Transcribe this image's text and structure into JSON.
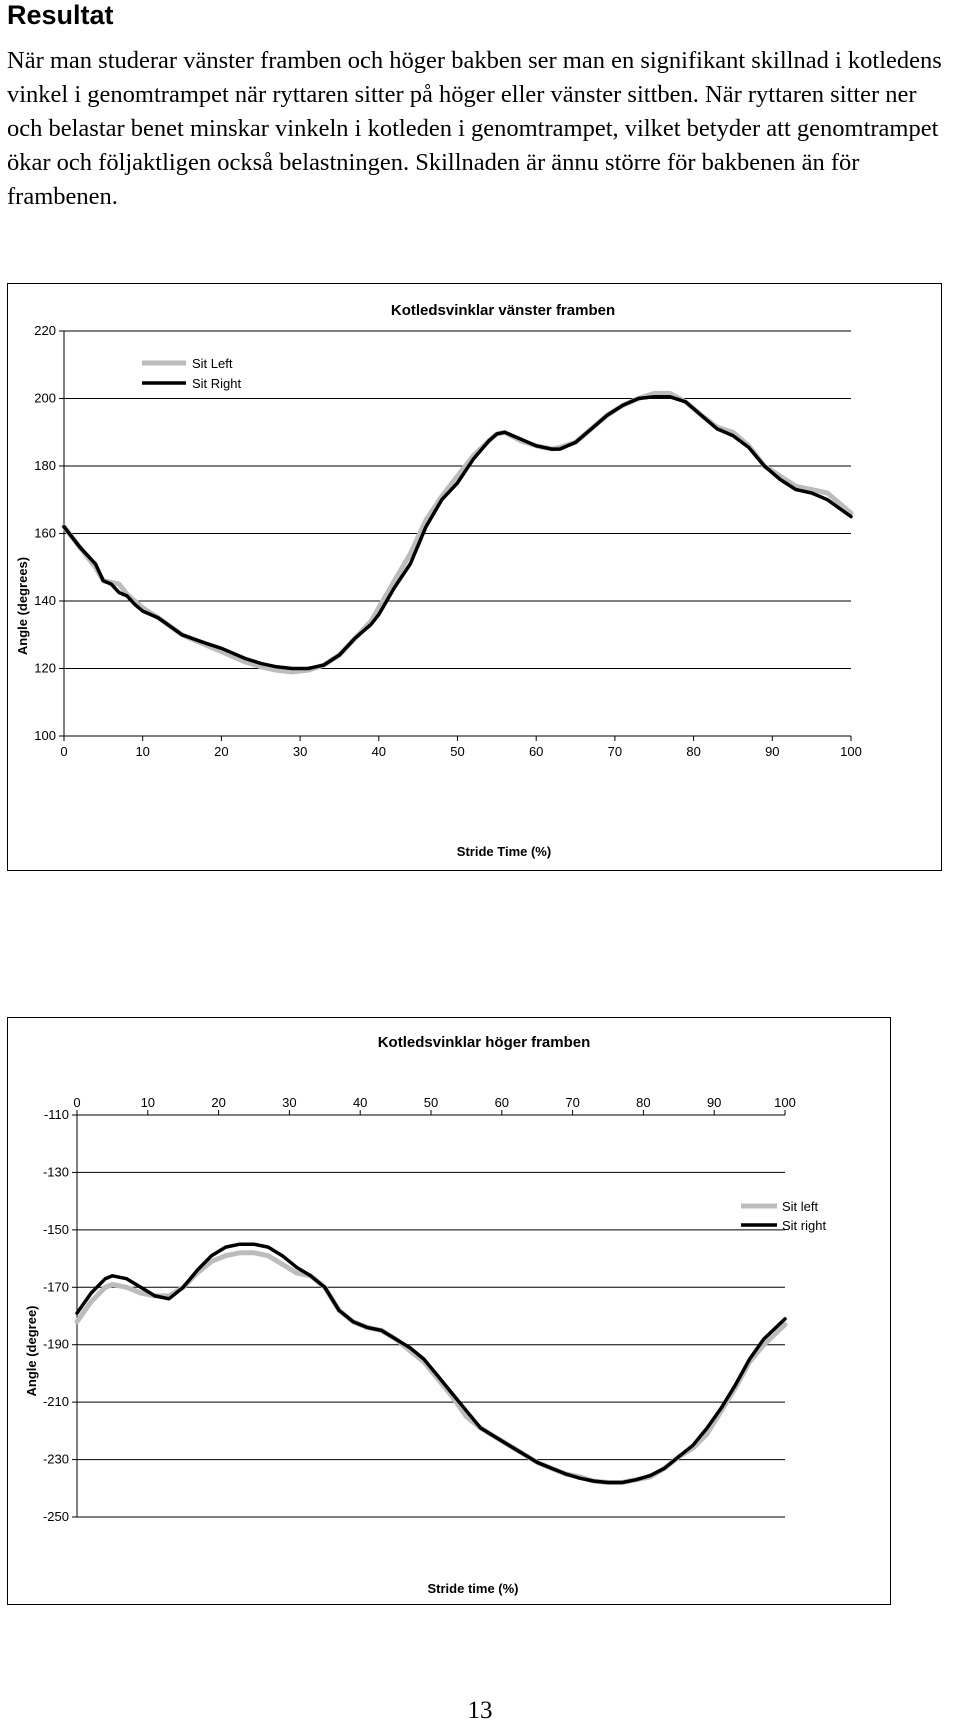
{
  "heading": "Resultat",
  "paragraph": "När man studerar vänster framben och höger bakben ser man en signifikant skillnad i kotledens vinkel i genomtrampet när ryttaren sitter på höger eller vänster sittben. När ryttaren sitter ner och belastar benet minskar vinkeln i kotleden i genomtrampet, vilket betyder att genomtrampet ökar och följaktligen också belastningen. Skillnaden är ännu större för bakbenen än för frambenen.",
  "page_number": "13",
  "colors": {
    "sit_left": "#bcbcbc",
    "sit_right": "#000000"
  },
  "chart_data": [
    {
      "type": "line",
      "title": "Kotledsvinklar vänster framben",
      "xlabel": "Stride Time (%)",
      "ylabel": "Angle (degrees)",
      "xlim": [
        0,
        100
      ],
      "ylim": [
        100,
        220
      ],
      "x_ticks": [
        "0",
        "10",
        "20",
        "30",
        "40",
        "50",
        "60",
        "70",
        "80",
        "90",
        "100"
      ],
      "y_ticks": [
        "220",
        "200",
        "180",
        "160",
        "140",
        "120",
        "100"
      ],
      "grid": "horizontal",
      "legend": "top-left",
      "x": [
        0,
        2,
        4,
        5,
        6,
        7,
        8,
        9,
        10,
        12,
        15,
        18,
        20,
        23,
        25,
        27,
        29,
        31,
        33,
        35,
        37,
        39,
        40,
        42,
        44,
        46,
        48,
        50,
        52,
        54,
        55,
        56,
        58,
        60,
        62,
        63,
        65,
        67,
        69,
        71,
        73,
        75,
        77,
        79,
        81,
        83,
        85,
        87,
        89,
        91,
        93,
        95,
        97,
        100
      ],
      "series": [
        {
          "name": "Sit Left",
          "values": [
            162,
            156,
            150,
            146,
            145.5,
            145,
            142,
            140,
            138,
            135,
            130,
            127,
            125,
            122,
            120.5,
            119.5,
            119,
            119.5,
            121,
            124,
            129,
            134,
            138,
            146,
            154,
            164,
            171,
            177,
            183,
            187.5,
            189.5,
            190,
            187.5,
            186,
            185,
            185.5,
            187,
            191,
            195,
            198,
            200,
            201.5,
            201.5,
            199,
            195,
            191.5,
            190,
            186,
            180,
            177,
            174,
            173,
            172,
            166
          ]
        },
        {
          "name": "Sit Right",
          "values": [
            162,
            156,
            151,
            146,
            145,
            142.5,
            141.5,
            139,
            137,
            135,
            130,
            127.5,
            126,
            123,
            121.5,
            120.5,
            120,
            120,
            121,
            124,
            129,
            133,
            136,
            144,
            151,
            162,
            170,
            175,
            182,
            187.5,
            189.5,
            190,
            188,
            186,
            185,
            185,
            187,
            191,
            195,
            198,
            200,
            200.5,
            200.5,
            199,
            195,
            191,
            189,
            185.5,
            180,
            176,
            173,
            172,
            170,
            165
          ]
        }
      ]
    },
    {
      "type": "line",
      "title": "Kotledsvinklar höger framben",
      "xlabel": "Stride time (%)",
      "ylabel": "Angle (degree)",
      "xlim": [
        0,
        100
      ],
      "ylim": [
        -250,
        -110
      ],
      "x_ticks": [
        "0",
        "10",
        "20",
        "30",
        "40",
        "50",
        "60",
        "70",
        "80",
        "90",
        "100"
      ],
      "y_ticks": [
        "-110",
        "-130",
        "-150",
        "-170",
        "-190",
        "-210",
        "-230",
        "-250"
      ],
      "x_axis_position": "top",
      "grid": "horizontal",
      "legend": "right",
      "x": [
        0,
        2,
        4,
        5,
        7,
        9,
        11,
        13,
        15,
        17,
        19,
        21,
        23,
        25,
        27,
        29,
        31,
        33,
        35,
        37,
        39,
        41,
        43,
        45,
        47,
        49,
        51,
        53,
        55,
        57,
        59,
        61,
        63,
        65,
        67,
        69,
        71,
        73,
        75,
        77,
        79,
        81,
        83,
        85,
        87,
        89,
        91,
        93,
        95,
        97,
        100
      ],
      "series": [
        {
          "name": "Sit left",
          "values": [
            -182,
            -175,
            -170,
            -169,
            -170,
            -172,
            -173,
            -173,
            -170,
            -165,
            -161,
            -159,
            -158,
            -158,
            -159,
            -162,
            -165,
            -166,
            -170,
            -178,
            -182,
            -184,
            -185,
            -188,
            -192,
            -196,
            -202,
            -208,
            -215,
            -219,
            -222,
            -225,
            -228,
            -231,
            -233,
            -235,
            -236,
            -237.5,
            -238,
            -238,
            -237,
            -236,
            -233,
            -229,
            -226,
            -221,
            -213,
            -205,
            -196,
            -190,
            -183
          ]
        },
        {
          "name": "Sit right",
          "values": [
            -179,
            -172,
            -167,
            -166,
            -167,
            -170,
            -173,
            -174,
            -170,
            -164,
            -159,
            -156,
            -155,
            -155,
            -156,
            -159,
            -163,
            -166,
            -170,
            -178,
            -182,
            -184,
            -185,
            -188,
            -191,
            -195,
            -201,
            -207,
            -213,
            -219,
            -222,
            -225,
            -228,
            -231,
            -233,
            -235,
            -236.5,
            -237.5,
            -238,
            -238,
            -237,
            -235.5,
            -233,
            -229,
            -225,
            -219,
            -212,
            -204,
            -195,
            -188,
            -181
          ]
        }
      ]
    }
  ]
}
